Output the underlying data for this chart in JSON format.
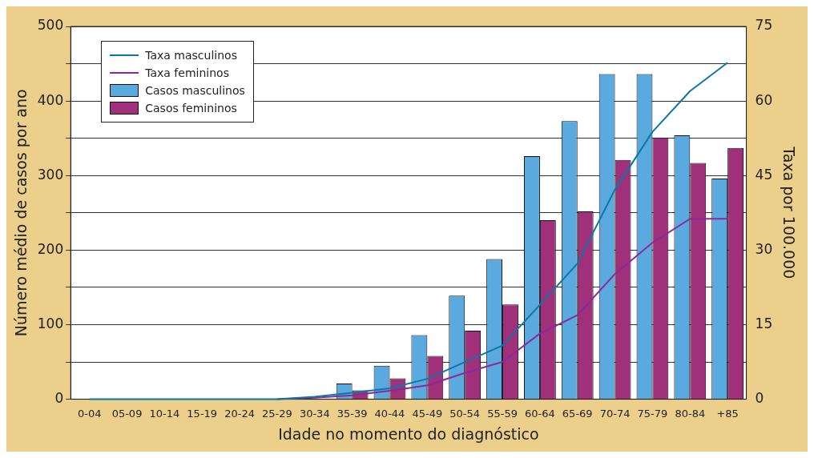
{
  "chart_data": {
    "type": "bar",
    "xlabel": "Idade no momento do diagnóstico",
    "ylabel": "Número médio de casos por ano",
    "y2label": "Taxa por 100.000",
    "categories": [
      "0-04",
      "05-09",
      "10-14",
      "15-19",
      "20-24",
      "25-29",
      "30-34",
      "35-39",
      "40-44",
      "45-49",
      "50-54",
      "55-59",
      "60-64",
      "65-69",
      "70-74",
      "75-79",
      "80-84",
      "+85"
    ],
    "series": [
      {
        "name": "Taxa masculinos",
        "type": "line",
        "axis": "y2",
        "color": "#0a78a6",
        "values": [
          0,
          0,
          0,
          0,
          0,
          0,
          0.5,
          1.3,
          2.2,
          4.1,
          7.5,
          10.8,
          19,
          27.3,
          42.2,
          53.8,
          62,
          67.7
        ]
      },
      {
        "name": "Taxa femininos",
        "type": "line",
        "axis": "y2",
        "color": "#8a2a9a",
        "values": [
          null,
          null,
          null,
          null,
          null,
          0,
          0.3,
          0.8,
          1.7,
          2.8,
          5.3,
          7.5,
          13.2,
          16.9,
          25.2,
          31.5,
          36.3,
          36.3
        ]
      },
      {
        "name": "Casos masculinos",
        "color": "#5aaae0",
        "values": [
          0,
          0,
          0,
          0,
          0,
          0,
          0,
          21,
          45,
          86,
          139,
          188,
          326,
          373,
          436,
          436,
          354,
          296
        ]
      },
      {
        "name": "Casos femininos",
        "color": "#a0307a",
        "values": [
          0,
          0,
          0,
          0,
          0,
          0,
          0,
          12,
          28,
          58,
          92,
          127,
          240,
          252,
          321,
          351,
          317,
          337
        ]
      }
    ],
    "ylim": [
      0,
      500
    ],
    "yticks": [
      0,
      {
        "value": 50,
        "label": null
      },
      100,
      {
        "value": 150,
        "label": null
      },
      200,
      {
        "value": 250,
        "label": null
      },
      300,
      {
        "value": 350,
        "label": null
      },
      400,
      {
        "value": 450,
        "label": null
      },
      500
    ],
    "y2lim": [
      0,
      75
    ],
    "y2ticks": [
      0,
      15,
      30,
      45,
      60,
      75
    ],
    "grid": "y",
    "legend": "top left"
  }
}
